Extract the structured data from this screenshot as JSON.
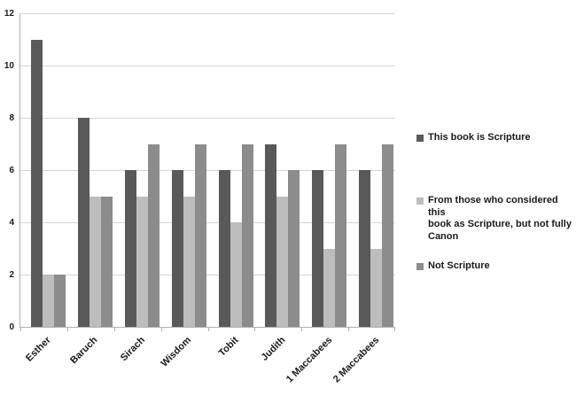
{
  "chart_data": {
    "type": "bar",
    "title": "",
    "xlabel": "",
    "ylabel": "",
    "categories": [
      "Esther",
      "Baruch",
      "Sirach",
      "Wisdom",
      "Tobit",
      "Judith",
      "1 Maccabees",
      "2 Maccabees"
    ],
    "series": [
      {
        "name": "This book is Scripture",
        "color": "#595959",
        "values": [
          11,
          8,
          6,
          6,
          6,
          7,
          6,
          6
        ]
      },
      {
        "name": "From those who considered this\nbook as Scripture, but not fully\nCanon",
        "color": "#bdbdbd",
        "values": [
          2,
          5,
          5,
          5,
          4,
          5,
          3,
          3
        ]
      },
      {
        "name": "Not Scripture",
        "color": "#8c8c8c",
        "values": [
          2,
          5,
          7,
          7,
          7,
          6,
          7,
          7
        ]
      }
    ],
    "ylim": [
      0,
      12
    ],
    "yticks": [
      0,
      2,
      4,
      6,
      8,
      10,
      12
    ],
    "grid": true,
    "legend_position": "right"
  },
  "colors": {
    "gridline": "#d6d6d6",
    "axis": "#b0b0b0",
    "text": "#1a1a1a",
    "background": "#ffffff"
  }
}
